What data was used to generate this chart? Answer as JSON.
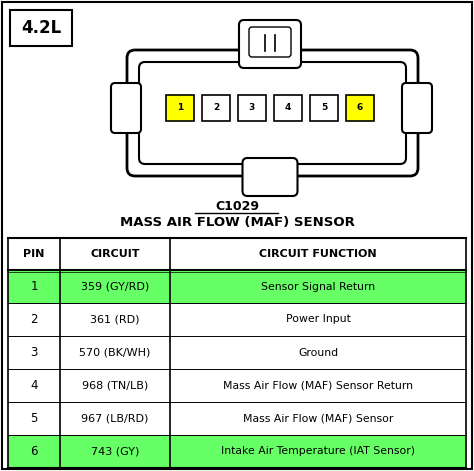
{
  "title_label": "4.2L",
  "connector_title": "C1029",
  "connector_subtitle": "MASS AIR FLOW (MAF) SENSOR",
  "table_headers": [
    "PIN",
    "CIRCUIT",
    "CIRCUIT FUNCTION"
  ],
  "table_rows": [
    {
      "pin": "1",
      "circuit": "359 (GY/RD)",
      "function": "Sensor Signal Return",
      "highlight": true
    },
    {
      "pin": "2",
      "circuit": "361 (RD)",
      "function": "Power Input",
      "highlight": false
    },
    {
      "pin": "3",
      "circuit": "570 (BK/WH)",
      "function": "Ground",
      "highlight": false
    },
    {
      "pin": "4",
      "circuit": "968 (TN/LB)",
      "function": "Mass Air Flow (MAF) Sensor Return",
      "highlight": false
    },
    {
      "pin": "5",
      "circuit": "967 (LB/RD)",
      "function": "Mass Air Flow (MAF) Sensor",
      "highlight": false
    },
    {
      "pin": "6",
      "circuit": "743 (GY)",
      "function": "Intake Air Temperature (IAT Sensor)",
      "highlight": true
    }
  ],
  "highlight_color": "#66FF66",
  "pin_highlight_color": "#FFFF00",
  "bg_color": "#FFFFFF",
  "border_color": "#000000",
  "text_color": "#000000"
}
